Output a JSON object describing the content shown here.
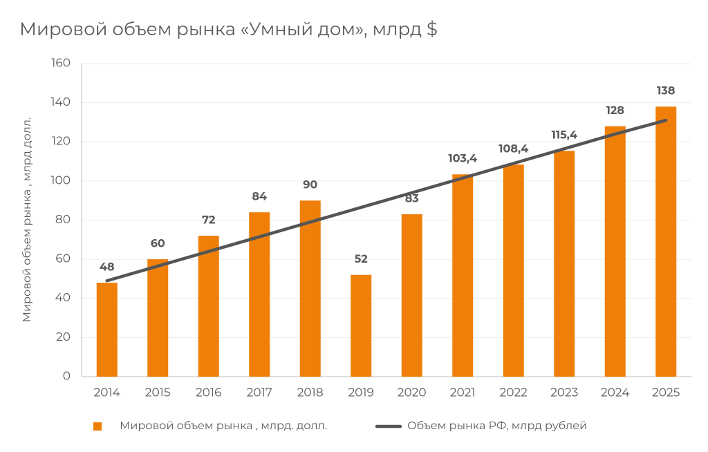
{
  "chart_data": {
    "type": "bar",
    "title": "Мировой объем рынка «Умный дом», млрд $",
    "y_label": "Мировой объем рынка , млрд долл.",
    "categories": [
      "2014",
      "2015",
      "2016",
      "2017",
      "2018",
      "2019",
      "2020",
      "2021",
      "2022",
      "2023",
      "2024",
      "2025"
    ],
    "series": [
      {
        "name": "Мировой объем рынка , млрд. долл.",
        "color": "#f07f09",
        "type": "bar",
        "values": [
          48,
          60,
          72,
          84,
          90,
          52,
          83,
          103.4,
          108.4,
          115.4,
          128,
          138
        ],
        "value_labels": [
          "48",
          "60",
          "72",
          "84",
          "90",
          "52",
          "83",
          "103,4",
          "108,4",
          "115,4",
          "128",
          "138"
        ]
      },
      {
        "name": "Объем рынка РФ, млрд рублей",
        "color": "#555555",
        "type": "line",
        "values": [
          49,
          56.5,
          64,
          71.5,
          79,
          86.5,
          94,
          101.5,
          109,
          116.5,
          124,
          131
        ]
      }
    ],
    "ylim": [
      0,
      160
    ],
    "yticks": [
      0,
      20,
      40,
      60,
      80,
      100,
      120,
      140,
      160
    ],
    "grid": true,
    "legend": "bottom"
  }
}
